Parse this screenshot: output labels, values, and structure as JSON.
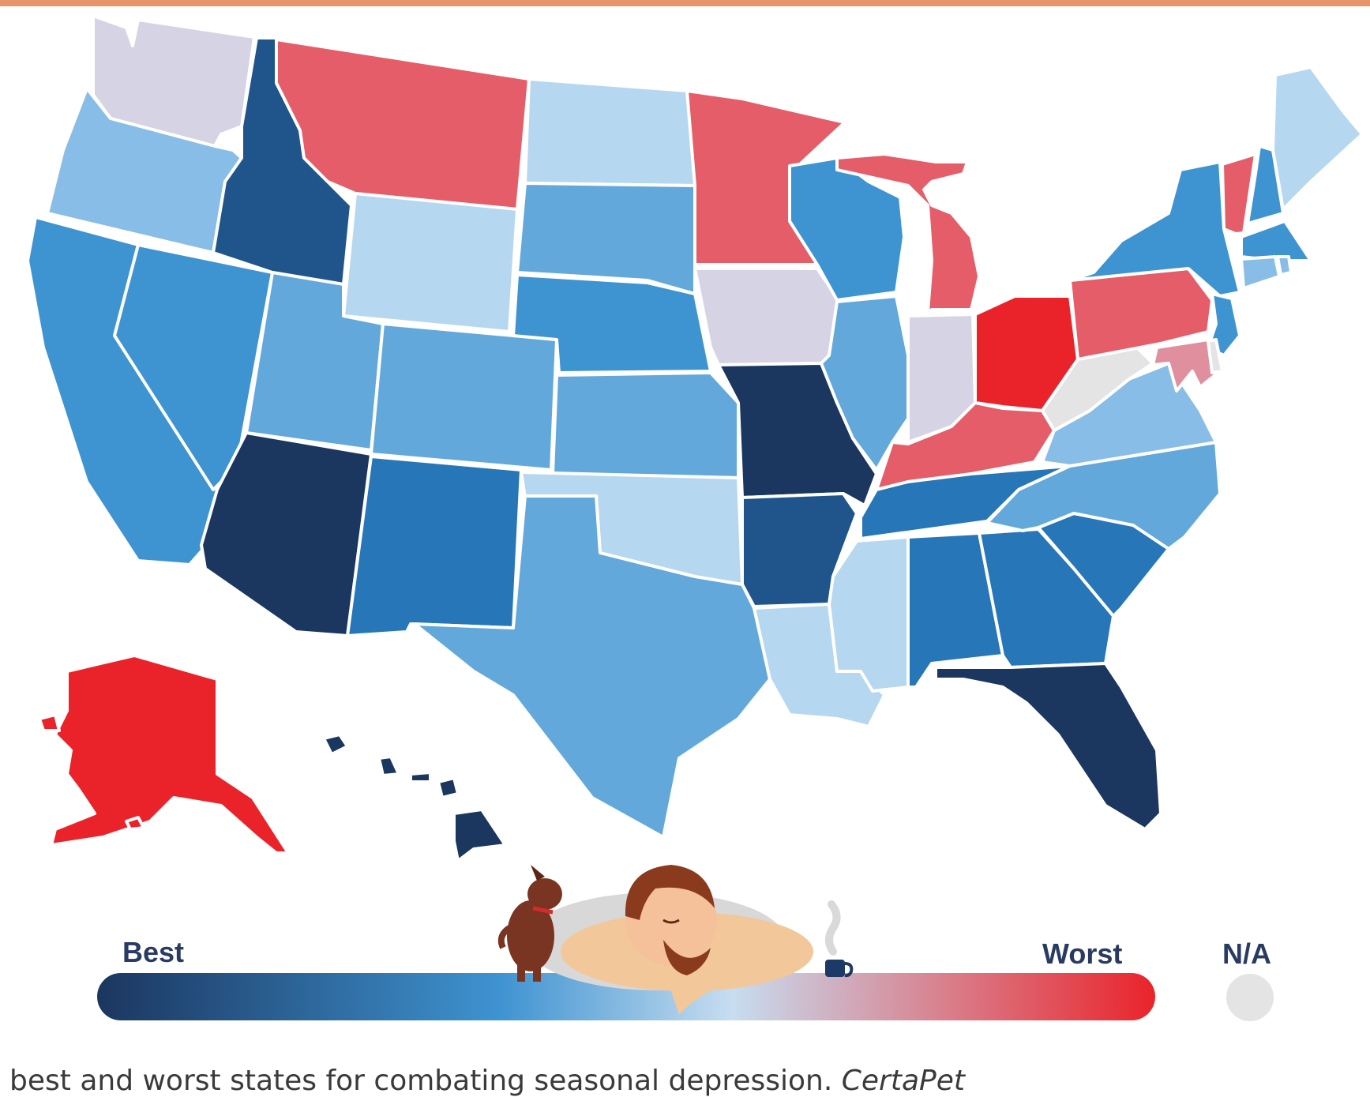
{
  "colors": {
    "best": "#1b365f",
    "mid": "#3e93d1",
    "light": "#b5d7f0",
    "worst": "#ea232a",
    "na": "#e3e4e3"
  },
  "legend": {
    "best_label": "Best",
    "worst_label": "Worst",
    "na_label": "N/A"
  },
  "caption": {
    "text": "best and worst states for combating seasonal depression.",
    "credit": "CertaPet"
  },
  "map": {
    "states": [
      {
        "code": "WA",
        "fill": "#d6d3e5"
      },
      {
        "code": "OR",
        "fill": "#87bde6"
      },
      {
        "code": "CA",
        "fill": "#3e93d1"
      },
      {
        "code": "NV",
        "fill": "#3e93d1"
      },
      {
        "code": "ID",
        "fill": "#1f558b"
      },
      {
        "code": "MT",
        "fill": "#e45d68"
      },
      {
        "code": "WY",
        "fill": "#b5d7f0"
      },
      {
        "code": "UT",
        "fill": "#62a8db"
      },
      {
        "code": "CO",
        "fill": "#62a8db"
      },
      {
        "code": "AZ",
        "fill": "#1b365f"
      },
      {
        "code": "NM",
        "fill": "#2676b8"
      },
      {
        "code": "ND",
        "fill": "#b5d7f0"
      },
      {
        "code": "SD",
        "fill": "#62a8db"
      },
      {
        "code": "NE",
        "fill": "#3e93d1"
      },
      {
        "code": "KS",
        "fill": "#62a8db"
      },
      {
        "code": "OK",
        "fill": "#b5d7f0"
      },
      {
        "code": "TX",
        "fill": "#62a8db"
      },
      {
        "code": "MN",
        "fill": "#e45d68"
      },
      {
        "code": "IA",
        "fill": "#d6d3e5"
      },
      {
        "code": "MO",
        "fill": "#1b365f"
      },
      {
        "code": "AR",
        "fill": "#1f558b"
      },
      {
        "code": "LA",
        "fill": "#b5d7f0"
      },
      {
        "code": "WI",
        "fill": "#3e93d1"
      },
      {
        "code": "IL",
        "fill": "#62a8db"
      },
      {
        "code": "MI",
        "fill": "#e45d68"
      },
      {
        "code": "IN",
        "fill": "#d6d3e5"
      },
      {
        "code": "OH",
        "fill": "#ea232a"
      },
      {
        "code": "KY",
        "fill": "#e45d68"
      },
      {
        "code": "TN",
        "fill": "#2676b8"
      },
      {
        "code": "MS",
        "fill": "#b5d7f0"
      },
      {
        "code": "AL",
        "fill": "#2676b8"
      },
      {
        "code": "GA",
        "fill": "#2676b8"
      },
      {
        "code": "FL",
        "fill": "#1b365f"
      },
      {
        "code": "SC",
        "fill": "#2676b8"
      },
      {
        "code": "NC",
        "fill": "#62a8db"
      },
      {
        "code": "VA",
        "fill": "#87bde6"
      },
      {
        "code": "WV",
        "fill": "#e3e4e3"
      },
      {
        "code": "PA",
        "fill": "#e45d68"
      },
      {
        "code": "NY",
        "fill": "#3e93d1"
      },
      {
        "code": "VT",
        "fill": "#e45d68"
      },
      {
        "code": "NH",
        "fill": "#3e93d1"
      },
      {
        "code": "ME",
        "fill": "#b5d7f0"
      },
      {
        "code": "MA",
        "fill": "#3e93d1"
      },
      {
        "code": "CT",
        "fill": "#87bde6"
      },
      {
        "code": "RI",
        "fill": "#87bde6"
      },
      {
        "code": "NJ",
        "fill": "#3e93d1"
      },
      {
        "code": "MD",
        "fill": "#e08f9f"
      },
      {
        "code": "DE",
        "fill": "#e3e4e3"
      },
      {
        "code": "AK",
        "fill": "#ea232a"
      },
      {
        "code": "HI",
        "fill": "#1b365f"
      }
    ]
  }
}
